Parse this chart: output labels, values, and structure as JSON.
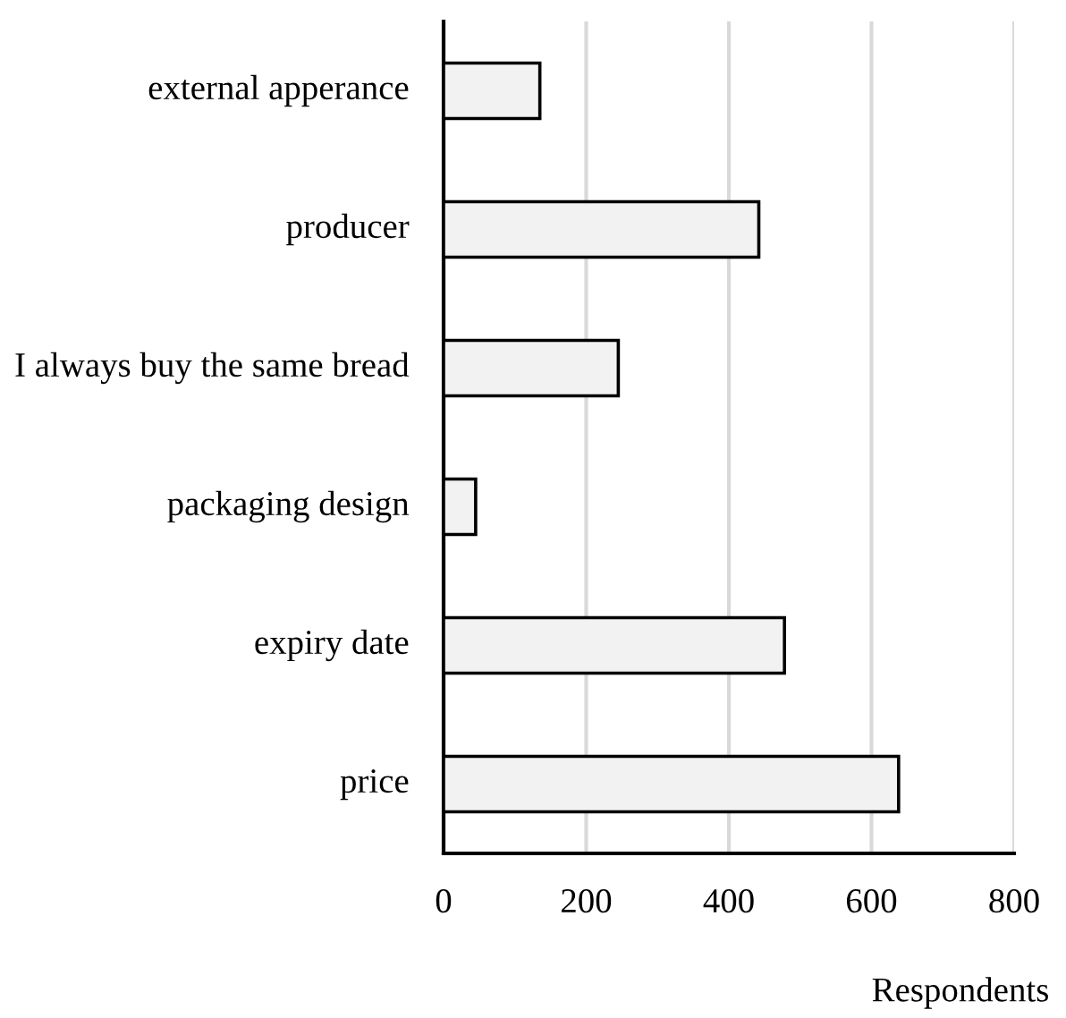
{
  "chart_data": {
    "type": "bar",
    "orientation": "horizontal",
    "categories": [
      "external apperance",
      "producer",
      "I always buy the same bread",
      "packaging design",
      "expiry date",
      "price"
    ],
    "values": [
      135,
      442,
      245,
      45,
      478,
      638
    ],
    "color": "#f2f2f2",
    "xlim": [
      0,
      800
    ],
    "xticks": [
      0,
      200,
      400,
      600,
      800
    ],
    "xlabel": "Respondents",
    "grid": "x",
    "legend": false
  }
}
